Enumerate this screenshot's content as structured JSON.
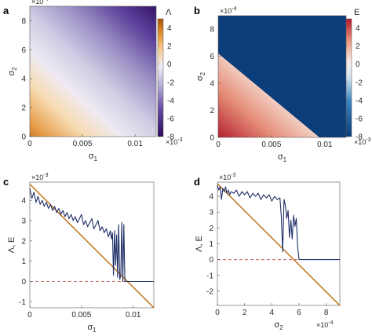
{
  "figure": {
    "panels": [
      {
        "letter": "a"
      },
      {
        "letter": "b"
      },
      {
        "letter": "c"
      },
      {
        "letter": "d"
      }
    ]
  },
  "colors": {
    "lambda_line": "#c06a12",
    "e_line": "#1f2f66",
    "zero_dashed": "#c55a5a",
    "axes": "#555555",
    "puor_low": "#3b0f70",
    "puor_mid": "#ece8f2",
    "puor_high": "#b35806",
    "rdbu_low": "#0b3d7a",
    "rdbu_mid": "#f3ece8",
    "rdbu_high": "#b2182b"
  },
  "chart_data": [
    {
      "id": "a",
      "type": "heatmap",
      "title": "",
      "xlabel": "σ1",
      "ylabel": "σ2",
      "x_ticks": [
        "0",
        "0.005",
        "0.01"
      ],
      "y_ticks": [
        "0",
        "2",
        "4",
        "6",
        "8"
      ],
      "y_exponent": "×10^-4",
      "xlim": [
        0,
        0.012
      ],
      "ylim": [
        0,
        0.0009
      ],
      "colorbar": {
        "label": "Λ",
        "ticks": [
          "4",
          "2",
          "0",
          "-2",
          "-4",
          "-6",
          "-8"
        ],
        "range": [
          -0.008,
          0.005
        ],
        "exponent": "×10^-3",
        "colormap": "PuOr"
      },
      "description_values": {
        "corner_low_low": 0.0048,
        "corner_high_high": -0.0079
      }
    },
    {
      "id": "b",
      "type": "heatmap",
      "title": "",
      "xlabel": "σ1",
      "ylabel": "σ2",
      "x_ticks": [
        "0",
        "0.005",
        "0.01"
      ],
      "y_ticks": [
        "0",
        "2",
        "4",
        "6",
        "8"
      ],
      "y_exponent": "×10^-4",
      "xlim": [
        0,
        0.012
      ],
      "ylim": [
        0,
        0.0009
      ],
      "colorbar": {
        "label": "E",
        "ticks": [
          "4",
          "2",
          "0",
          "-2",
          "-4",
          "-6",
          "-8"
        ],
        "range": [
          -0.008,
          0.005
        ],
        "exponent": "×10^-3",
        "colormap": "RdBu"
      },
      "boundary": {
        "sigma1_at_sigma2_0": 0.0095,
        "sigma2_at_sigma1_0": 0.00062
      }
    },
    {
      "id": "c",
      "type": "line",
      "title": "",
      "xlabel": "σ1",
      "ylabel": "Λ, E",
      "x_ticks": [
        "0",
        "0.005",
        "0.01"
      ],
      "y_ticks": [
        "-1",
        "0",
        "1",
        "2",
        "3",
        "4"
      ],
      "y_exponent": "×10^-3",
      "xlim": [
        0,
        0.012
      ],
      "ylim": [
        -0.0013,
        0.0049
      ],
      "series": [
        {
          "color_key": "lambda_line",
          "x": [
            0,
            0.012
          ],
          "y": [
            0.0048,
            -0.0013
          ]
        },
        {
          "color_key": "e_line",
          "x": [
            0,
            0.0002,
            0.0004,
            0.0006,
            0.0008,
            0.001,
            0.0012,
            0.0014,
            0.0016,
            0.0018,
            0.002,
            0.0022,
            0.0024,
            0.0026,
            0.0028,
            0.003,
            0.0032,
            0.0034,
            0.0036,
            0.0038,
            0.004,
            0.0042,
            0.0044,
            0.0046,
            0.0048,
            0.005,
            0.0052,
            0.0054,
            0.0056,
            0.0058,
            0.006,
            0.0062,
            0.0064,
            0.0066,
            0.0068,
            0.007,
            0.0072,
            0.0074,
            0.0076,
            0.0078,
            0.0079,
            0.008,
            0.0081,
            0.0082,
            0.0083,
            0.0084,
            0.0085,
            0.0086,
            0.0087,
            0.0088,
            0.0089,
            0.009,
            0.0091,
            0.0092,
            0.0093,
            0.0094,
            0.012
          ],
          "y": [
            0.0046,
            0.0041,
            0.0044,
            0.0039,
            0.0042,
            0.0038,
            0.004,
            0.0037,
            0.0039,
            0.0036,
            0.0038,
            0.0035,
            0.0037,
            0.0034,
            0.0036,
            0.0033,
            0.0035,
            0.0032,
            0.0034,
            0.0031,
            0.0033,
            0.003,
            0.0032,
            0.0029,
            0.0031,
            0.0033,
            0.0028,
            0.003,
            0.0027,
            0.0029,
            0.0031,
            0.0026,
            0.0028,
            0.003,
            0.0025,
            0.0027,
            0.0024,
            0.0026,
            0.0022,
            0.0025,
            0.0021,
            0.0024,
            0.0003,
            0.0025,
            0.0008,
            0.0023,
            0.0002,
            0.0028,
            0.0001,
            0.0003,
            0.0029,
            0.0,
            0.0028,
            0.0,
            0.0,
            0.0,
            0.0
          ]
        }
      ],
      "zero_line": {
        "color_key": "zero_dashed",
        "x_end": 0.0094
      }
    },
    {
      "id": "d",
      "type": "line",
      "title": "",
      "xlabel": "σ2",
      "ylabel": "Λ, E",
      "x_ticks": [
        "0",
        "2",
        "4",
        "6",
        "8"
      ],
      "x_exponent": "×10^-4",
      "y_ticks": [
        "-2",
        "-1",
        "0",
        "1",
        "2",
        "3",
        "4"
      ],
      "y_exponent": "×10^-3",
      "xlim": [
        0,
        0.0009
      ],
      "ylim": [
        -0.0029,
        0.0049
      ],
      "series": [
        {
          "color_key": "lambda_line",
          "x": [
            0,
            0.0009
          ],
          "y": [
            0.0048,
            -0.0029
          ]
        },
        {
          "color_key": "e_line",
          "x": [
            0,
            1e-05,
            2e-05,
            3e-05,
            4e-05,
            5e-05,
            6e-05,
            7e-05,
            8e-05,
            9e-05,
            0.0001,
            0.00012,
            0.00014,
            0.00016,
            0.00018,
            0.0002,
            0.00022,
            0.00024,
            0.00026,
            0.00028,
            0.0003,
            0.00032,
            0.00034,
            0.00036,
            0.00038,
            0.0004,
            0.00042,
            0.00044,
            0.00046,
            0.00047,
            0.00048,
            0.00049,
            0.0005,
            0.00051,
            0.00052,
            0.00053,
            0.00054,
            0.00055,
            0.00056,
            0.00057,
            0.00058,
            0.00059,
            0.0006,
            0.0009
          ],
          "y": [
            0.0047,
            0.0044,
            0.0046,
            0.0038,
            0.0045,
            0.0043,
            0.0046,
            0.0042,
            0.0044,
            0.0041,
            0.0043,
            0.0042,
            0.0044,
            0.004,
            0.0043,
            0.0041,
            0.0043,
            0.0039,
            0.0042,
            0.004,
            0.0042,
            0.0038,
            0.0041,
            0.0039,
            0.0041,
            0.0037,
            0.004,
            0.0038,
            0.0039,
            0.0027,
            0.0005,
            0.0038,
            0.0034,
            0.0026,
            0.0031,
            0.0014,
            0.0025,
            0.0013,
            0.0028,
            0.0021,
            0.0026,
            0.0008,
            0.0,
            0.0
          ]
        }
      ],
      "zero_line": {
        "color_key": "zero_dashed",
        "x_end": 0.0006
      }
    }
  ]
}
